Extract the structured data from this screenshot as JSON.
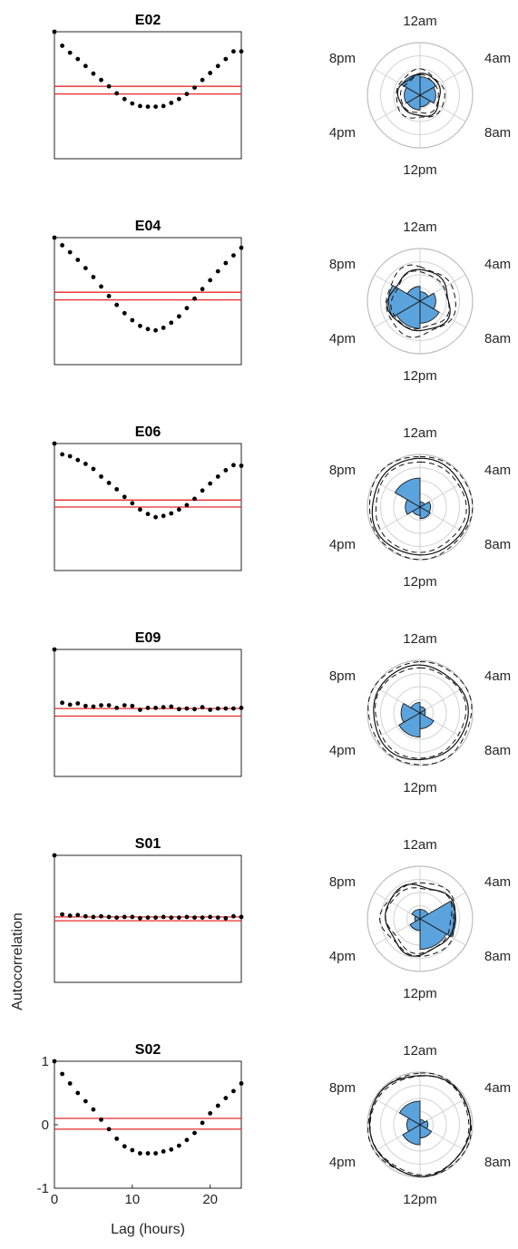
{
  "labels": {
    "ylabel": "Autocorrelation",
    "xlabel": "Lag (hours)",
    "yticks": [
      "1",
      "0",
      "-1"
    ],
    "xticks": [
      "0",
      "10",
      "20"
    ],
    "polar_ticks": {
      "top": "12am",
      "topright": "4am",
      "bottomright": "8am",
      "bottom": "12pm",
      "bottomleft": "4pm",
      "topleft": "8pm"
    }
  },
  "colors": {
    "dots": "#000000",
    "ci": "#e8292a",
    "rose": "#5ba3dc",
    "ring": "#d2d2d2"
  },
  "chart_data": [
    {
      "type": "scatter",
      "title": "E02",
      "x": [
        0,
        1,
        2,
        3,
        4,
        5,
        6,
        7,
        8,
        9,
        10,
        11,
        12,
        13,
        14,
        15,
        16,
        17,
        18,
        19,
        20,
        21,
        22,
        23,
        24
      ],
      "values": [
        1.0,
        0.78,
        0.67,
        0.57,
        0.46,
        0.34,
        0.24,
        0.14,
        0.03,
        -0.06,
        -0.13,
        -0.17,
        -0.18,
        -0.18,
        -0.17,
        -0.12,
        -0.06,
        0.02,
        0.12,
        0.24,
        0.35,
        0.46,
        0.57,
        0.69,
        0.69
      ],
      "ci": [
        0.14,
        0.02
      ],
      "ylim": [
        -1,
        1
      ],
      "xlim": [
        0,
        24
      ],
      "polar": {
        "rose": [
          0.35,
          0.3,
          0.22,
          0.28,
          0.3,
          0.4
        ],
        "rings": [
          0.4,
          0.36,
          0.46
        ]
      }
    },
    {
      "type": "scatter",
      "title": "E04",
      "x": [
        0,
        1,
        2,
        3,
        4,
        5,
        6,
        7,
        8,
        9,
        10,
        11,
        12,
        13,
        14,
        15,
        16,
        17,
        18,
        19,
        20,
        21,
        22,
        23,
        24
      ],
      "values": [
        1.0,
        0.88,
        0.77,
        0.65,
        0.52,
        0.38,
        0.23,
        0.08,
        -0.06,
        -0.19,
        -0.3,
        -0.39,
        -0.44,
        -0.46,
        -0.42,
        -0.34,
        -0.24,
        -0.11,
        0.04,
        0.19,
        0.33,
        0.47,
        0.6,
        0.72,
        0.84
      ],
      "ci": [
        0.14,
        0.02
      ],
      "ylim": [
        -1,
        1
      ],
      "xlim": [
        0,
        24
      ],
      "polar": {
        "rose": [
          0.18,
          0.3,
          0.42,
          0.52,
          0.6,
          0.28
        ],
        "rings": [
          0.58,
          0.54,
          0.66
        ]
      }
    },
    {
      "type": "scatter",
      "title": "E06",
      "x": [
        0,
        1,
        2,
        3,
        4,
        5,
        6,
        7,
        8,
        9,
        10,
        11,
        12,
        13,
        14,
        15,
        16,
        17,
        18,
        19,
        20,
        21,
        22,
        23,
        24
      ],
      "values": [
        1.0,
        0.83,
        0.8,
        0.74,
        0.68,
        0.6,
        0.48,
        0.38,
        0.28,
        0.16,
        0.06,
        -0.04,
        -0.11,
        -0.16,
        -0.14,
        -0.1,
        -0.04,
        0.03,
        0.13,
        0.26,
        0.37,
        0.48,
        0.58,
        0.66,
        0.65
      ],
      "ci": [
        0.11,
        0.0
      ],
      "ylim": [
        -1,
        1
      ],
      "xlim": [
        0,
        24
      ],
      "polar": {
        "rose": [
          0.1,
          0.2,
          0.22,
          0.16,
          0.28,
          0.55
        ],
        "rings": [
          0.92,
          0.86,
          0.98
        ]
      }
    },
    {
      "type": "scatter",
      "title": "E09",
      "x": [
        0,
        1,
        2,
        3,
        4,
        5,
        6,
        7,
        8,
        9,
        10,
        11,
        12,
        13,
        14,
        15,
        16,
        17,
        18,
        19,
        20,
        21,
        22,
        23,
        24
      ],
      "values": [
        1.0,
        0.16,
        0.13,
        0.15,
        0.11,
        0.1,
        0.12,
        0.12,
        0.08,
        0.12,
        0.11,
        0.05,
        0.08,
        0.08,
        0.09,
        0.1,
        0.06,
        0.07,
        0.06,
        0.09,
        0.05,
        0.07,
        0.07,
        0.07,
        0.08
      ],
      "ci": [
        0.07,
        -0.05
      ],
      "ylim": [
        -1,
        1
      ],
      "xlim": [
        0,
        24
      ],
      "polar": {
        "rose": [
          0.12,
          0.1,
          0.3,
          0.46,
          0.36,
          0.2
        ],
        "rings": [
          0.9,
          0.86,
          0.98
        ]
      }
    },
    {
      "type": "scatter",
      "title": "S01",
      "x": [
        0,
        1,
        2,
        3,
        4,
        5,
        6,
        7,
        8,
        9,
        10,
        11,
        12,
        13,
        14,
        15,
        16,
        17,
        18,
        19,
        20,
        21,
        22,
        23,
        24
      ],
      "values": [
        1.0,
        0.07,
        0.05,
        0.06,
        0.04,
        0.03,
        0.04,
        0.03,
        0.02,
        0.03,
        0.03,
        0.01,
        0.02,
        0.02,
        0.03,
        0.02,
        0.02,
        0.03,
        0.02,
        0.02,
        0.03,
        0.02,
        0.01,
        0.04,
        0.03
      ],
      "ci": [
        0.03,
        -0.03
      ],
      "ylim": [
        -1,
        1
      ],
      "xlim": [
        0,
        24
      ],
      "polar": {
        "rose": [
          0.18,
          0.68,
          0.58,
          0.22,
          0.1,
          0.18
        ],
        "rings": [
          0.66,
          0.62,
          0.7
        ]
      }
    },
    {
      "type": "scatter",
      "title": "S02",
      "x": [
        0,
        1,
        2,
        3,
        4,
        5,
        6,
        7,
        8,
        9,
        10,
        11,
        12,
        13,
        14,
        15,
        16,
        17,
        18,
        19,
        20,
        21,
        22,
        23,
        24
      ],
      "values": [
        1.0,
        0.8,
        0.65,
        0.5,
        0.37,
        0.24,
        0.08,
        -0.07,
        -0.22,
        -0.34,
        -0.4,
        -0.45,
        -0.45,
        -0.45,
        -0.42,
        -0.39,
        -0.33,
        -0.24,
        -0.13,
        0.03,
        0.18,
        0.3,
        0.42,
        0.53,
        0.65
      ],
      "ci": [
        0.1,
        -0.07
      ],
      "ylim": [
        -1,
        1
      ],
      "xlim": [
        0,
        24
      ],
      "polar": {
        "rose": [
          0.1,
          0.15,
          0.25,
          0.38,
          0.25,
          0.45
        ],
        "rings": [
          0.96,
          0.94,
          0.98
        ]
      }
    }
  ]
}
